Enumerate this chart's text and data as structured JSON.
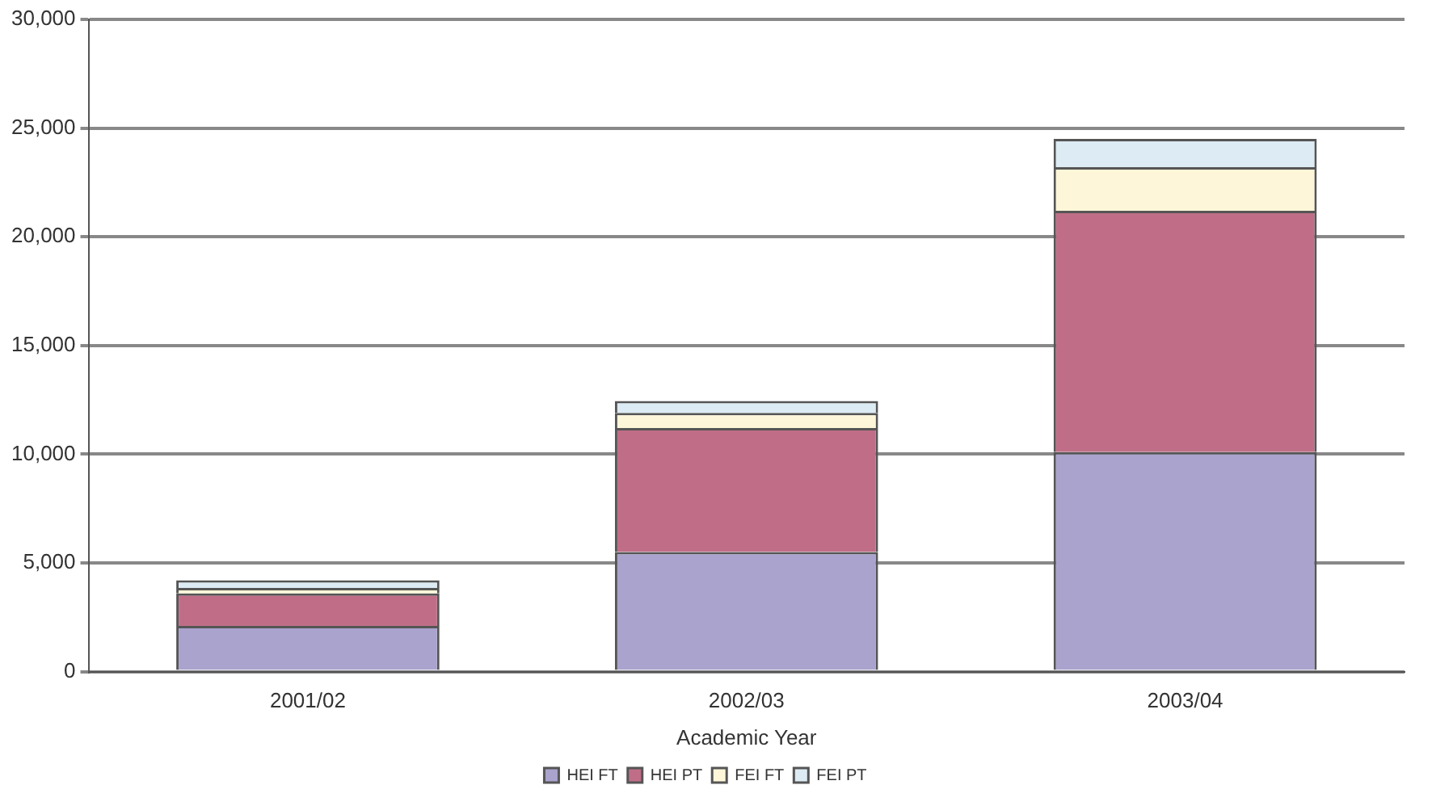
{
  "chart_data": {
    "type": "bar",
    "stacked": true,
    "xlabel": "Academic Year",
    "categories": [
      "2001/02",
      "2002/03",
      "2003/04"
    ],
    "series": [
      {
        "name": "HEI FT",
        "color": "#aaa3cd",
        "values": [
          2100,
          5500,
          10100
        ]
      },
      {
        "name": "HEI PT",
        "color": "#c06e88",
        "values": [
          1500,
          5700,
          11100
        ]
      },
      {
        "name": "FEI FT",
        "color": "#fdf6d8",
        "values": [
          250,
          700,
          2000
        ]
      },
      {
        "name": "FEI PT",
        "color": "#dcebf4",
        "values": [
          350,
          550,
          1300
        ]
      }
    ],
    "ylim": [
      0,
      30000
    ],
    "yticks": [
      0,
      {
        "value": 5000,
        "label": "5,000"
      },
      {
        "value": 10000,
        "label": "10,000"
      },
      {
        "value": 15000,
        "label": "15,000"
      },
      {
        "value": 20000,
        "label": "20,000"
      },
      {
        "value": 25000,
        "label": "25,000"
      },
      {
        "value": 30000,
        "label": "30,000"
      }
    ],
    "grid": "y",
    "legend": "bottom"
  }
}
